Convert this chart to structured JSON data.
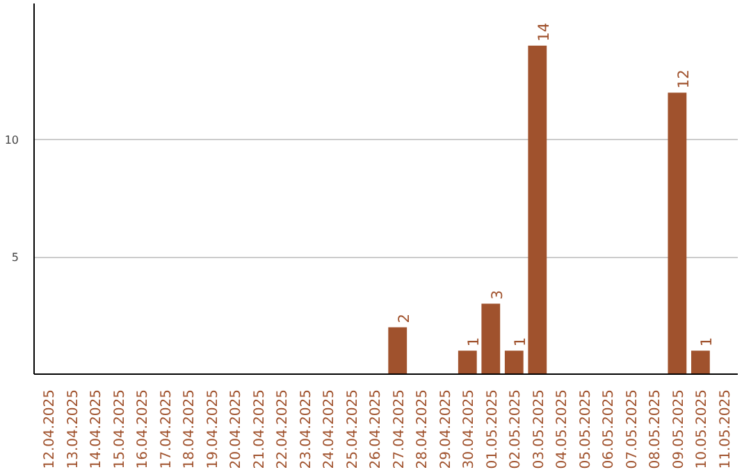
{
  "chart_data": {
    "type": "bar",
    "categories": [
      "12.04.2025",
      "13.04.2025",
      "14.04.2025",
      "15.04.2025",
      "16.04.2025",
      "17.04.2025",
      "18.04.2025",
      "19.04.2025",
      "20.04.2025",
      "21.04.2025",
      "22.04.2025",
      "23.04.2025",
      "24.04.2025",
      "25.04.2025",
      "26.04.2025",
      "27.04.2025",
      "28.04.2025",
      "29.04.2025",
      "30.04.2025",
      "01.05.2025",
      "02.05.2025",
      "03.05.2025",
      "04.05.2025",
      "05.05.2025",
      "06.05.2025",
      "07.05.2025",
      "08.05.2025",
      "09.05.2025",
      "10.05.2025",
      "11.05.2025"
    ],
    "values": [
      0,
      0,
      0,
      0,
      0,
      0,
      0,
      0,
      0,
      0,
      0,
      0,
      0,
      0,
      0,
      2,
      0,
      0,
      1,
      3,
      1,
      14,
      0,
      0,
      0,
      0,
      0,
      12,
      1,
      0
    ],
    "value_labels": [
      null,
      null,
      null,
      null,
      null,
      null,
      null,
      null,
      null,
      null,
      null,
      null,
      null,
      null,
      null,
      "2",
      null,
      null,
      "1",
      "3",
      "1",
      "14",
      null,
      null,
      null,
      null,
      null,
      "12",
      "1",
      null
    ],
    "color": "#a0522d",
    "ylim": [
      0,
      15.8
    ],
    "yticks": [
      5,
      10
    ],
    "grid": "y"
  }
}
